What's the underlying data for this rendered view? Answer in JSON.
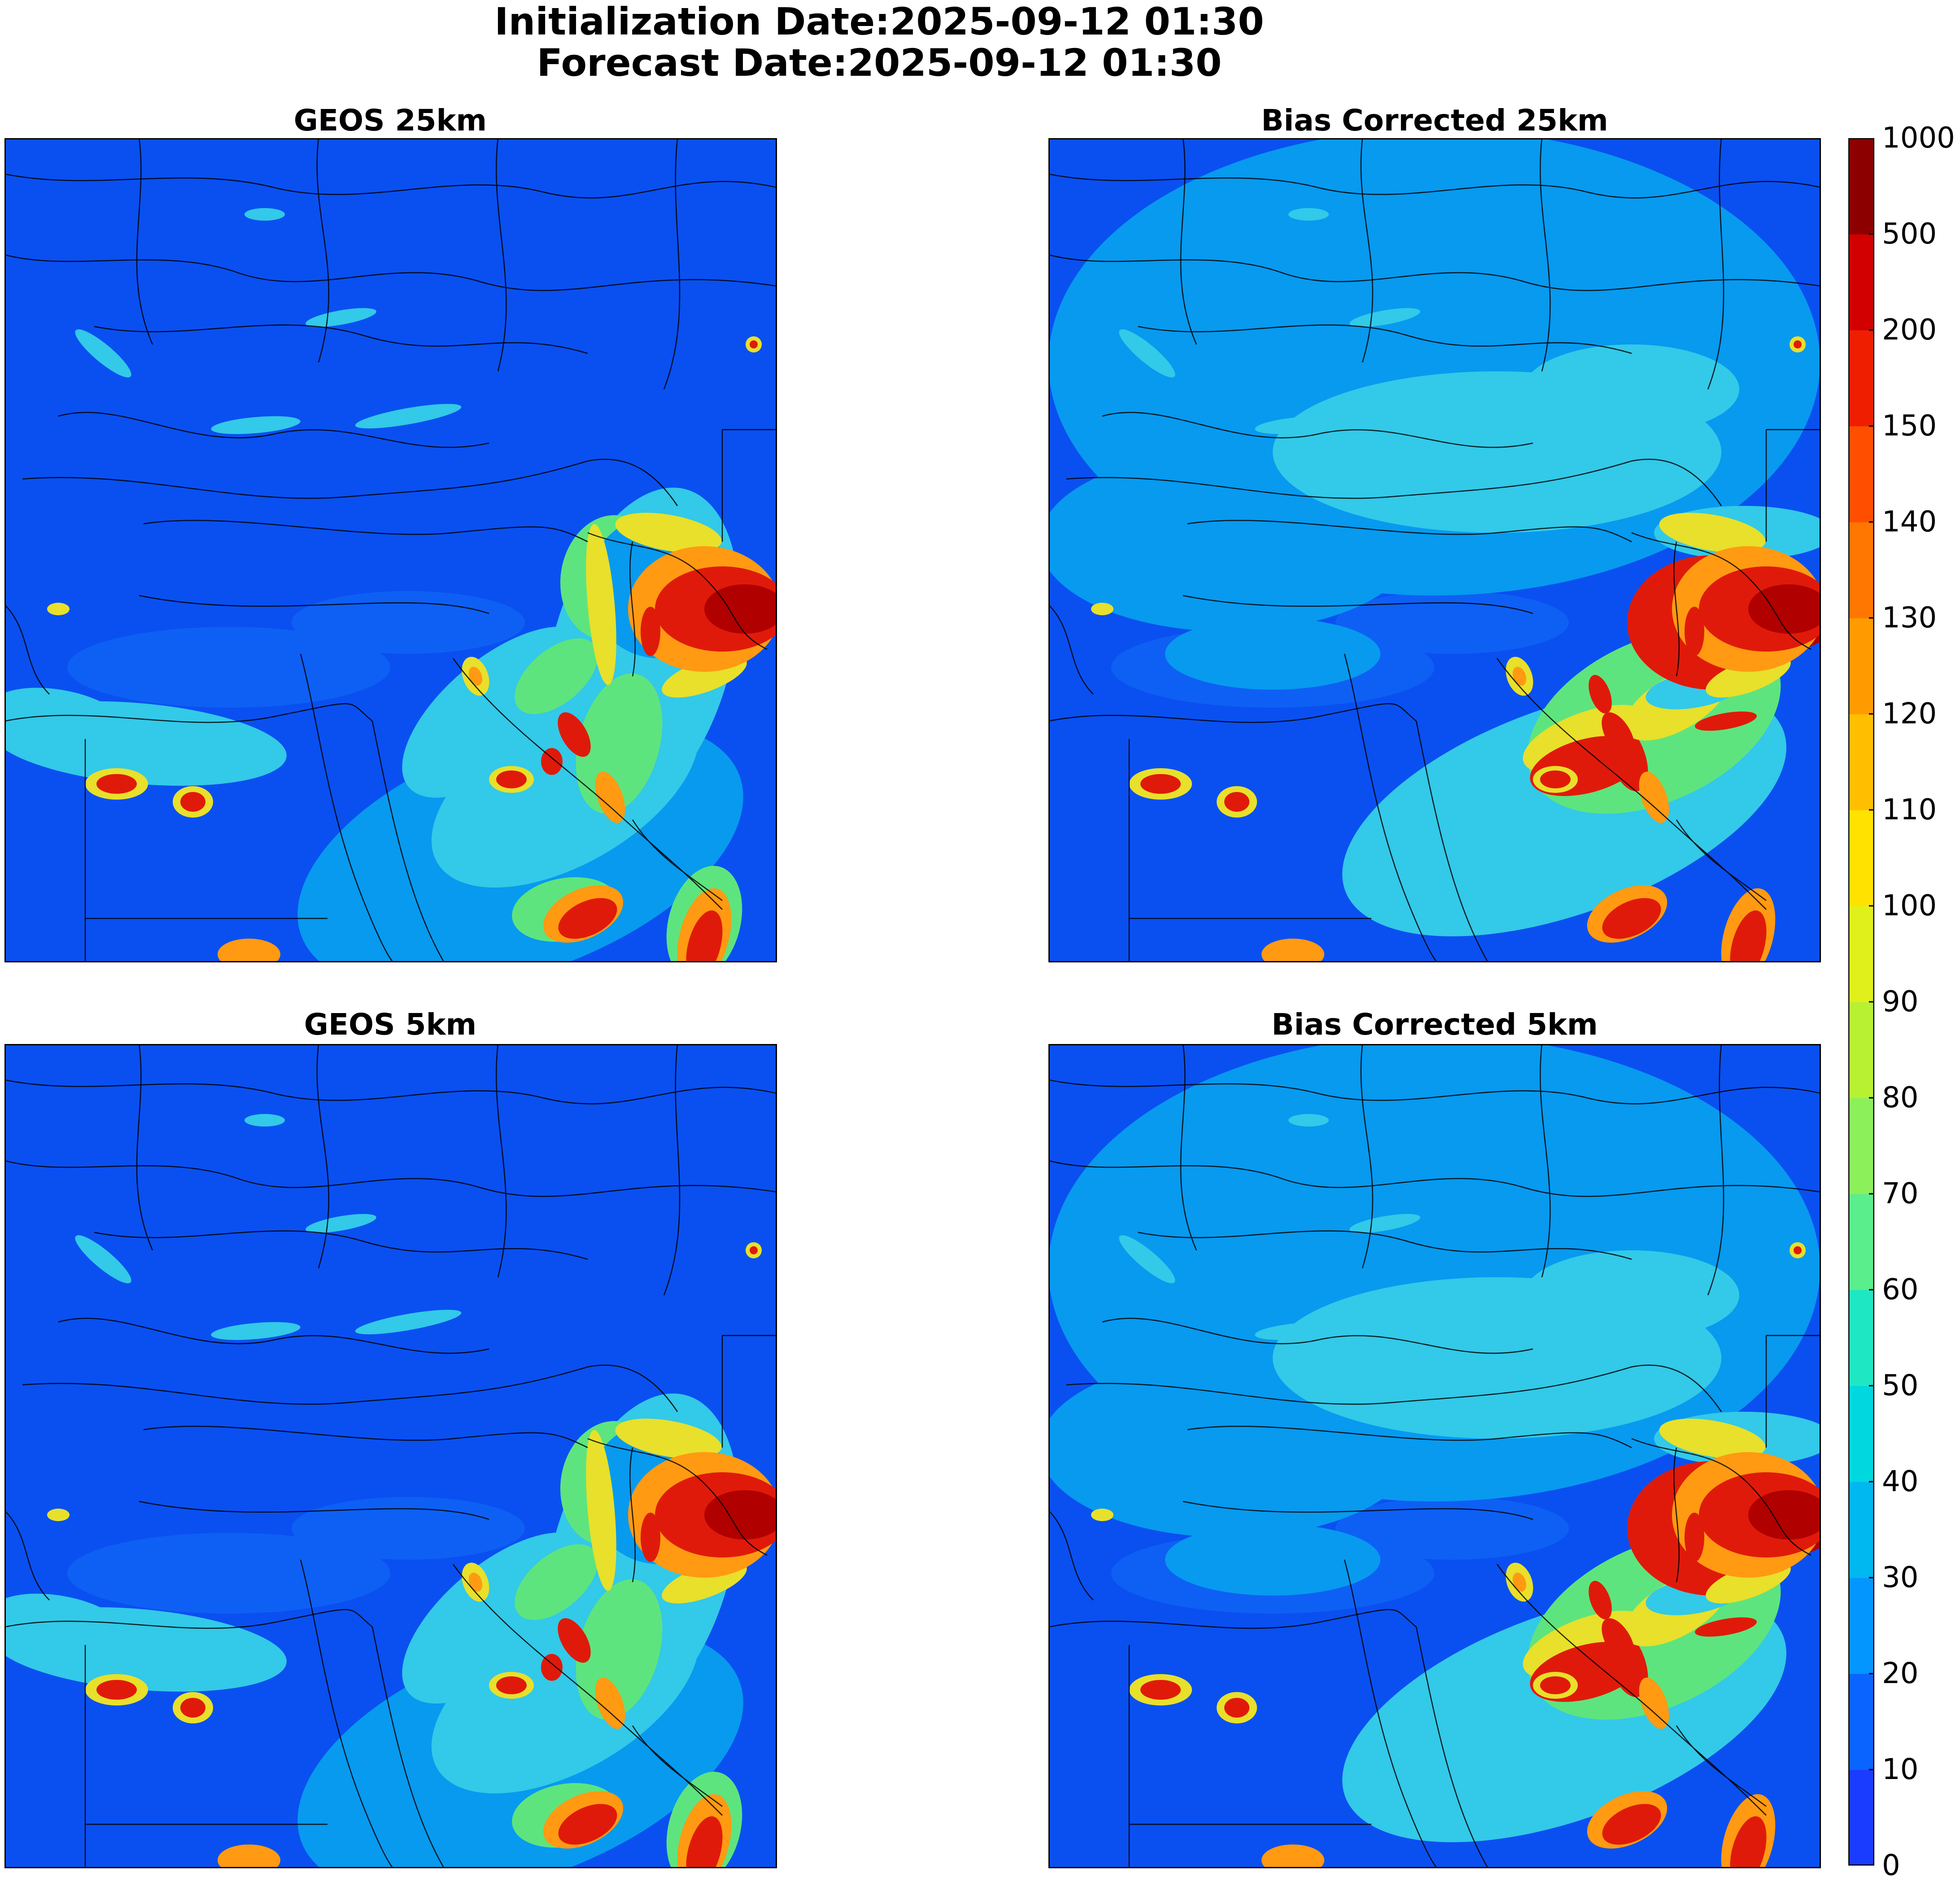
{
  "figure": {
    "title_line1": "Initialization Date:2025-09-12 01:30",
    "title_line2": "Forecast Date:2025-09-12 01:30"
  },
  "panels": [
    {
      "title": "GEOS 25km"
    },
    {
      "title": "Bias Corrected 25km"
    },
    {
      "title": "GEOS 5km"
    },
    {
      "title": "Bias Corrected 5km"
    }
  ],
  "colorbar": {
    "ticks": [
      "0",
      "10",
      "20",
      "30",
      "40",
      "50",
      "60",
      "70",
      "80",
      "90",
      "100",
      "110",
      "120",
      "130",
      "140",
      "150",
      "200",
      "500",
      "1000"
    ],
    "colors": [
      "#1a3cff",
      "#0a64ff",
      "#0496ff",
      "#00b8f0",
      "#00d8e0",
      "#1ee8c4",
      "#5aee8c",
      "#8cf05a",
      "#b8f032",
      "#e0f01a",
      "#ffe200",
      "#ffbe00",
      "#ff9a00",
      "#ff7600",
      "#ff4e00",
      "#f01e00",
      "#d20000",
      "#8c0000"
    ]
  },
  "map_colors": {
    "background": "#0a50f0",
    "ocean": "#0e60f4",
    "medium": "#079aef",
    "light": "#33c9e8",
    "green": "#5ee47e",
    "yellow": "#e8e02a",
    "orange": "#ff9a12",
    "red": "#e01a0a",
    "darkred": "#b00000",
    "borders": "#000000"
  }
}
